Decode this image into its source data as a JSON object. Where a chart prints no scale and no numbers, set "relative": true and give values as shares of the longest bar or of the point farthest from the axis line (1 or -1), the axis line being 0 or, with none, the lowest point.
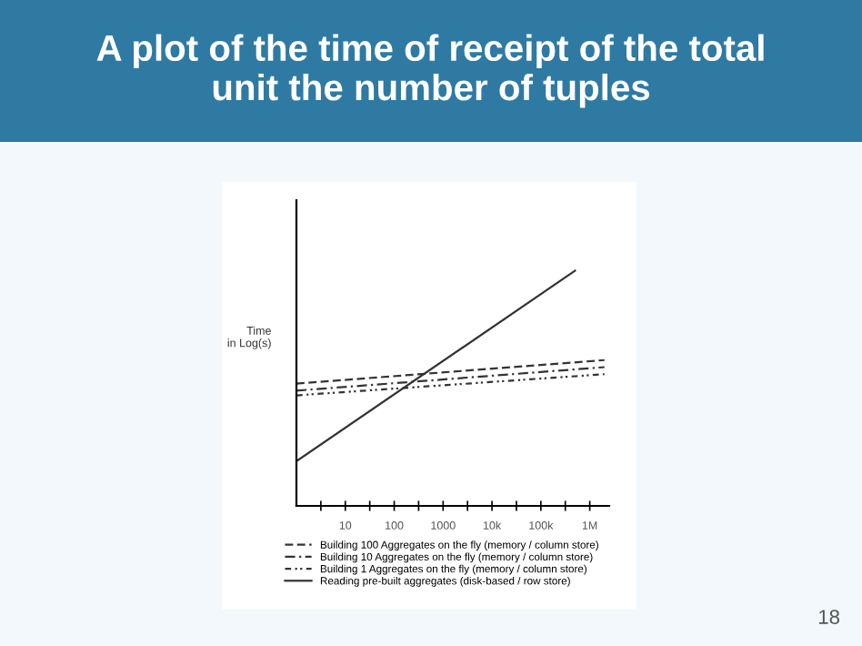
{
  "chart_data": {
    "type": "line",
    "title": "A plot of the time of receipt of the total\nunit the number of tuples",
    "ylabel": "Time\nin Log(s)",
    "relative": true,
    "log": "x",
    "xlim": [
      1,
      2500000
    ],
    "xticks": [
      {
        "value": 3.16,
        "label": null
      },
      {
        "value": 10,
        "label": "10"
      },
      {
        "value": 31.6,
        "label": null
      },
      {
        "value": 100,
        "label": "100"
      },
      {
        "value": 316,
        "label": null
      },
      {
        "value": 1000,
        "label": "1000"
      },
      {
        "value": 3160,
        "label": null
      },
      {
        "value": 10000,
        "label": "10k"
      },
      {
        "value": 31600,
        "label": null
      },
      {
        "value": 100000,
        "label": "100k"
      },
      {
        "value": 316000,
        "label": null
      },
      {
        "value": 1000000,
        "label": "1M"
      }
    ],
    "series": [
      {
        "name": "Building 100 Aggregates on the fly (memory / column store)",
        "color": "#333333",
        "line_style": "dashed",
        "x": [
          1,
          2000000
        ],
        "values": [
          0.52,
          0.62
        ]
      },
      {
        "name": "Building 10 Aggregates on the fly (memory / column store)",
        "color": "#333333",
        "line_style": "dashdot",
        "x": [
          1,
          2000000
        ],
        "values": [
          0.49,
          0.59
        ]
      },
      {
        "name": "Building 1 Aggregates on the fly (memory / column store)",
        "color": "#333333",
        "line_style": "dotted",
        "x": [
          1,
          2000000
        ],
        "values": [
          0.47,
          0.56
        ]
      },
      {
        "name": "Reading pre-built aggregates (disk-based / row store)",
        "color": "#333333",
        "line_style": "solid",
        "x": [
          1,
          500000
        ],
        "values": [
          0.19,
          1.0
        ]
      }
    ],
    "legend": "bottom",
    "grid": false,
    "marker": "none",
    "annotations": [
      "18"
    ]
  }
}
